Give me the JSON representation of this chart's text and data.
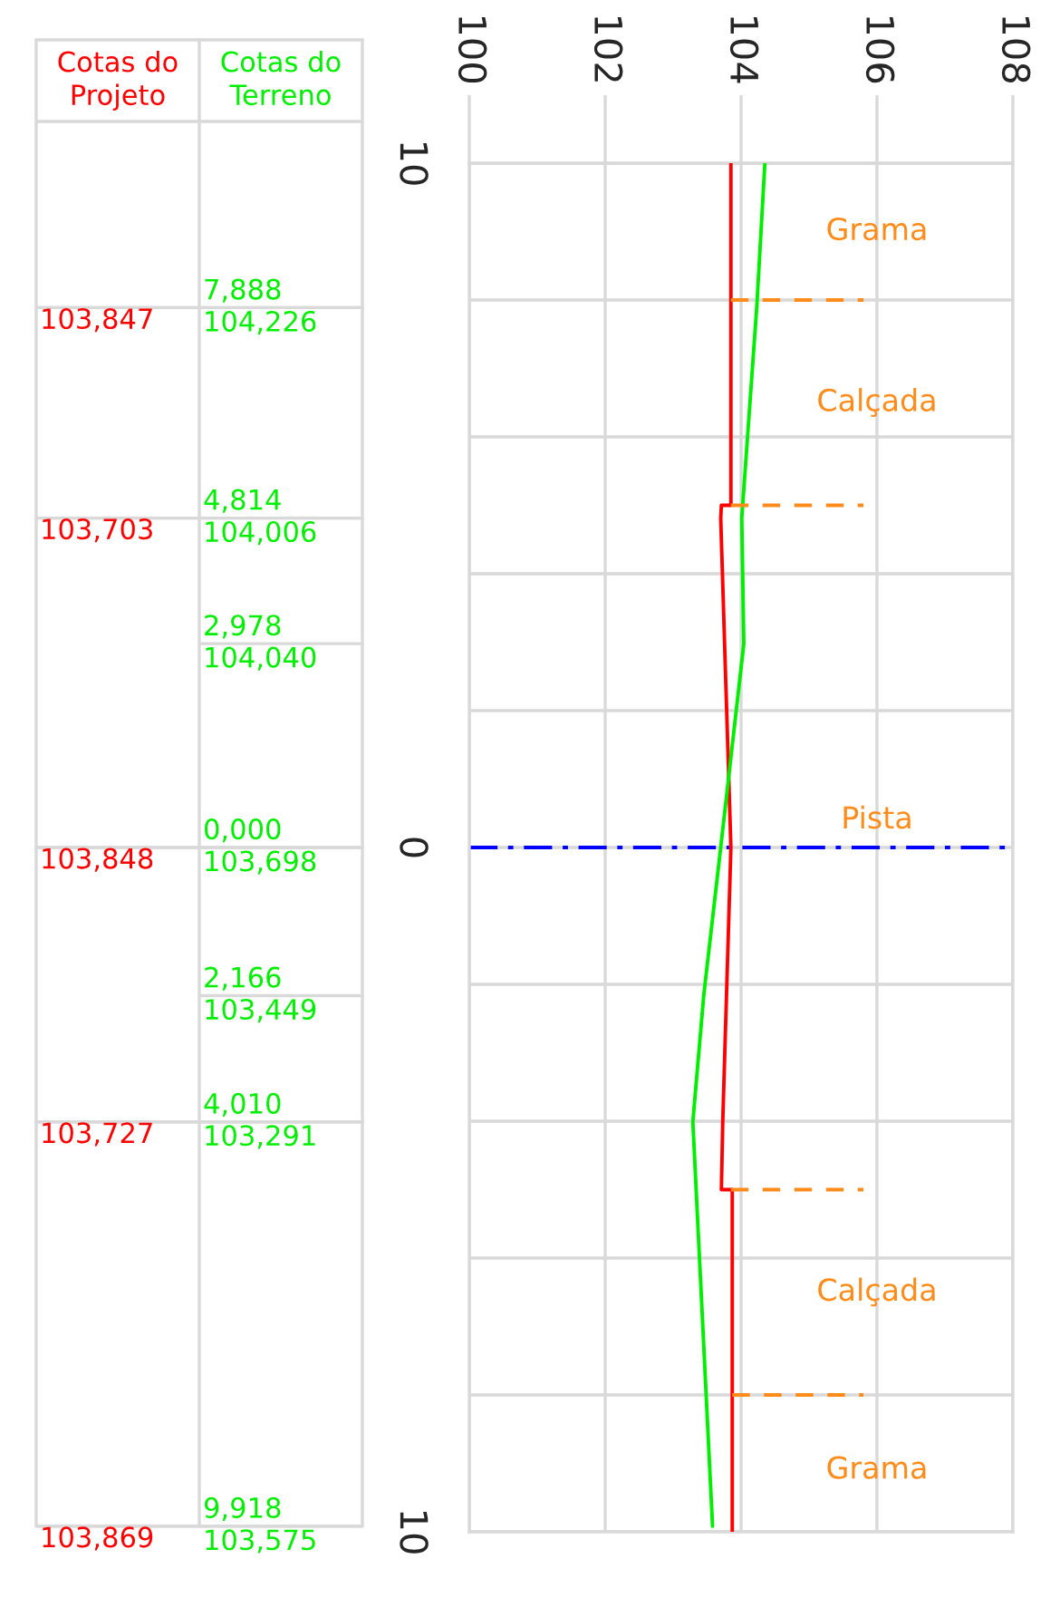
{
  "chart_data": {
    "type": "line",
    "orientation": "horizontal",
    "xlim": [
      100,
      108
    ],
    "xticks": [
      100,
      102,
      104,
      106,
      108
    ],
    "ylim": [
      -10,
      10
    ],
    "yticks": [
      {
        "value": 10,
        "label": "10"
      },
      {
        "value": 8,
        "label": null
      },
      {
        "value": 6,
        "label": null
      },
      {
        "value": 4,
        "label": null
      },
      {
        "value": 2,
        "label": null
      },
      {
        "value": 0,
        "label": "0"
      },
      {
        "value": -2,
        "label": null
      },
      {
        "value": -4,
        "label": null
      },
      {
        "value": -6,
        "label": null
      },
      {
        "value": -8,
        "label": null
      },
      {
        "value": -10,
        "label": "10"
      }
    ],
    "grid": true,
    "series": [
      {
        "name": "Cotas do\nProjeto",
        "color": "#ff0000",
        "x": [
          10,
          7.888,
          5,
          5,
          4.814,
          0,
          -4.01,
          -5,
          -5,
          -9.918,
          -10
        ],
        "values": [
          103.85,
          103.85,
          103.85,
          103.71,
          103.7,
          103.85,
          103.73,
          103.71,
          103.87,
          103.87,
          103.87
        ]
      },
      {
        "name": "Cotas do\nTerreno",
        "color": "#00ee00",
        "x": [
          10,
          7.888,
          4.814,
          2.978,
          0,
          -2.166,
          -4.01,
          -9.918
        ],
        "values": [
          104.35,
          104.23,
          104.01,
          104.04,
          103.7,
          103.45,
          103.29,
          103.58
        ]
      },
      {
        "color": "#ff8c1a",
        "line_style": "dashed",
        "x": [
          8,
          8
        ],
        "values": [
          103.85,
          105.8
        ]
      },
      {
        "color": "#ff8c1a",
        "line_style": "dashed",
        "x": [
          5,
          5
        ],
        "values": [
          103.85,
          105.8
        ]
      },
      {
        "color": "#ff8c1a",
        "line_style": "dashed",
        "x": [
          -5,
          -5
        ],
        "values": [
          103.85,
          105.8
        ]
      },
      {
        "color": "#ff8c1a",
        "line_style": "dashed",
        "x": [
          -8,
          -8
        ],
        "values": [
          103.87,
          105.8
        ]
      }
    ],
    "ref_lines": [
      {
        "axis": "y",
        "value": 0,
        "color": "#0000ff",
        "line_style": "dashdot"
      }
    ],
    "annotations": [
      "Grama",
      "Calçada",
      "Pista",
      "Calçada",
      "Grama",
      "7,888\n104,226",
      "4,814\n104,006",
      "2,978\n104,040",
      "0,000\n103,698",
      "2,166\n103,449",
      "4,010\n103,291",
      "9,918\n103,575",
      "103,847",
      "103,703",
      "103,848",
      "103,727",
      "103,869"
    ]
  }
}
